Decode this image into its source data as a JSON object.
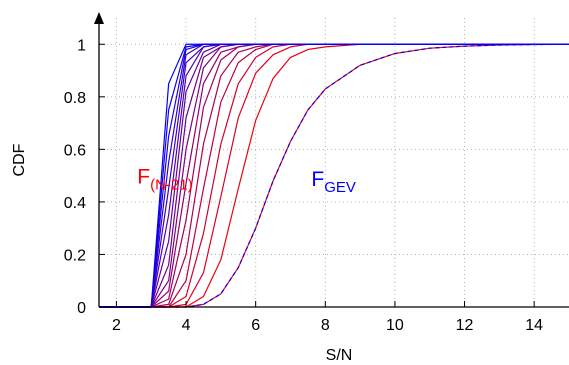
{
  "chart_data": {
    "type": "line",
    "title": "",
    "xlabel": "S/N",
    "ylabel": "CDF",
    "xlim": [
      1.5,
      15
    ],
    "ylim": [
      0,
      1.1
    ],
    "x_ticks": [
      2,
      4,
      6,
      8,
      10,
      12,
      14
    ],
    "x_tick_labels": [
      "2",
      "4",
      "6",
      "8",
      "10",
      "12",
      "14"
    ],
    "y_ticks": [
      0,
      0.2,
      0.4,
      0.6,
      0.8,
      1
    ],
    "y_tick_labels": [
      "0",
      "0.2",
      "0.4",
      "0.6",
      "0.8",
      "1"
    ],
    "grid": true,
    "grid_style": "dotted",
    "family": {
      "x": [
        3.0,
        3.5,
        4.0,
        4.5,
        5.0,
        5.5,
        6.0,
        6.5,
        7.0,
        7.5,
        8.0,
        9.0,
        10.0,
        11.0,
        12.0,
        13.0,
        14.0,
        15.0
      ],
      "color_first": "#0000ff",
      "color_last": "#ff0000",
      "series": [
        {
          "values": [
            0.0,
            0.85,
            1.0,
            1.0,
            1.0,
            1.0,
            1.0,
            1.0,
            1.0,
            1.0,
            1.0,
            1.0,
            1.0,
            1.0,
            1.0,
            1.0,
            1.0,
            1.0
          ]
        },
        {
          "values": [
            0.0,
            0.75,
            0.99,
            1.0,
            1.0,
            1.0,
            1.0,
            1.0,
            1.0,
            1.0,
            1.0,
            1.0,
            1.0,
            1.0,
            1.0,
            1.0,
            1.0,
            1.0
          ]
        },
        {
          "values": [
            0.0,
            0.65,
            0.98,
            1.0,
            1.0,
            1.0,
            1.0,
            1.0,
            1.0,
            1.0,
            1.0,
            1.0,
            1.0,
            1.0,
            1.0,
            1.0,
            1.0,
            1.0
          ]
        },
        {
          "values": [
            0.0,
            0.55,
            0.96,
            1.0,
            1.0,
            1.0,
            1.0,
            1.0,
            1.0,
            1.0,
            1.0,
            1.0,
            1.0,
            1.0,
            1.0,
            1.0,
            1.0,
            1.0
          ]
        },
        {
          "values": [
            0.0,
            0.45,
            0.93,
            0.99,
            1.0,
            1.0,
            1.0,
            1.0,
            1.0,
            1.0,
            1.0,
            1.0,
            1.0,
            1.0,
            1.0,
            1.0,
            1.0,
            1.0
          ]
        },
        {
          "values": [
            0.0,
            0.35,
            0.88,
            0.99,
            1.0,
            1.0,
            1.0,
            1.0,
            1.0,
            1.0,
            1.0,
            1.0,
            1.0,
            1.0,
            1.0,
            1.0,
            1.0,
            1.0
          ]
        },
        {
          "values": [
            0.0,
            0.25,
            0.82,
            0.97,
            1.0,
            1.0,
            1.0,
            1.0,
            1.0,
            1.0,
            1.0,
            1.0,
            1.0,
            1.0,
            1.0,
            1.0,
            1.0,
            1.0
          ]
        },
        {
          "values": [
            0.0,
            0.16,
            0.72,
            0.95,
            0.99,
            1.0,
            1.0,
            1.0,
            1.0,
            1.0,
            1.0,
            1.0,
            1.0,
            1.0,
            1.0,
            1.0,
            1.0,
            1.0
          ]
        },
        {
          "values": [
            0.0,
            0.1,
            0.6,
            0.91,
            0.99,
            1.0,
            1.0,
            1.0,
            1.0,
            1.0,
            1.0,
            1.0,
            1.0,
            1.0,
            1.0,
            1.0,
            1.0,
            1.0
          ]
        },
        {
          "values": [
            0.0,
            0.06,
            0.47,
            0.85,
            0.97,
            0.99,
            1.0,
            1.0,
            1.0,
            1.0,
            1.0,
            1.0,
            1.0,
            1.0,
            1.0,
            1.0,
            1.0,
            1.0
          ]
        },
        {
          "values": [
            0.0,
            0.03,
            0.33,
            0.76,
            0.94,
            0.99,
            1.0,
            1.0,
            1.0,
            1.0,
            1.0,
            1.0,
            1.0,
            1.0,
            1.0,
            1.0,
            1.0,
            1.0
          ]
        },
        {
          "values": [
            0.0,
            0.01,
            0.2,
            0.62,
            0.88,
            0.97,
            0.99,
            1.0,
            1.0,
            1.0,
            1.0,
            1.0,
            1.0,
            1.0,
            1.0,
            1.0,
            1.0,
            1.0
          ]
        },
        {
          "values": [
            0.0,
            0.0,
            0.1,
            0.45,
            0.78,
            0.93,
            0.98,
            1.0,
            1.0,
            1.0,
            1.0,
            1.0,
            1.0,
            1.0,
            1.0,
            1.0,
            1.0,
            1.0
          ]
        },
        {
          "values": [
            0.0,
            0.0,
            0.04,
            0.28,
            0.62,
            0.85,
            0.95,
            0.99,
            1.0,
            1.0,
            1.0,
            1.0,
            1.0,
            1.0,
            1.0,
            1.0,
            1.0,
            1.0
          ]
        },
        {
          "values": [
            0.0,
            0.0,
            0.01,
            0.13,
            0.42,
            0.72,
            0.89,
            0.96,
            0.99,
            1.0,
            1.0,
            1.0,
            1.0,
            1.0,
            1.0,
            1.0,
            1.0,
            1.0
          ]
        },
        {
          "values": [
            0.0,
            0.0,
            0.0,
            0.04,
            0.18,
            0.45,
            0.71,
            0.87,
            0.95,
            0.98,
            0.99,
            1.0,
            1.0,
            1.0,
            1.0,
            1.0,
            1.0,
            1.0
          ]
        },
        {
          "values": [
            0.0,
            0.0,
            0.0,
            0.01,
            0.05,
            0.15,
            0.3,
            0.48,
            0.63,
            0.75,
            0.83,
            0.92,
            0.965,
            0.985,
            0.993,
            0.997,
            0.999,
            1.0
          ]
        }
      ]
    },
    "overlay": {
      "x": [
        3.0,
        3.5,
        4.0,
        4.5,
        5.0,
        5.5,
        6.0,
        6.5,
        7.0,
        7.5,
        8.0,
        9.0,
        10.0,
        11.0,
        12.0,
        13.0,
        14.0,
        15.0
      ],
      "values": [
        0.0,
        0.0,
        0.0,
        0.01,
        0.05,
        0.15,
        0.3,
        0.48,
        0.63,
        0.75,
        0.83,
        0.92,
        0.965,
        0.985,
        0.993,
        0.997,
        0.999,
        1.0
      ],
      "color": "#0000ff",
      "dash": "dashed"
    },
    "annotations": [
      {
        "text": "F",
        "subscript": "(N-21)",
        "color": "#ff0000",
        "x": 2.6,
        "y": 0.47
      },
      {
        "text": "F",
        "subscript": "GEV",
        "color": "#0000ff",
        "x": 7.6,
        "y": 0.46
      }
    ]
  }
}
